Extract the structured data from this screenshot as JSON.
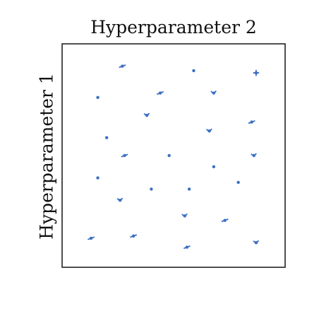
{
  "chart_data": {
    "type": "scatter",
    "title": "",
    "xlabel": "Hyperparameter 2",
    "ylabel": "Hyperparameter 1",
    "xlim": [
      0,
      1
    ],
    "ylim": [
      0,
      1
    ],
    "grid": false,
    "axis_ticks": false,
    "point_color": "#3b6fc4",
    "series": [
      {
        "points": [
          {
            "x": 0.27,
            "y": 0.9,
            "shape": "dash"
          },
          {
            "x": 0.59,
            "y": 0.88,
            "shape": "dot"
          },
          {
            "x": 0.87,
            "y": 0.87,
            "shape": "plus"
          },
          {
            "x": 0.16,
            "y": 0.76,
            "shape": "dot"
          },
          {
            "x": 0.44,
            "y": 0.78,
            "shape": "dash"
          },
          {
            "x": 0.68,
            "y": 0.78,
            "shape": "hook"
          },
          {
            "x": 0.38,
            "y": 0.68,
            "shape": "hook"
          },
          {
            "x": 0.85,
            "y": 0.65,
            "shape": "dash"
          },
          {
            "x": 0.66,
            "y": 0.61,
            "shape": "hook"
          },
          {
            "x": 0.2,
            "y": 0.58,
            "shape": "dot"
          },
          {
            "x": 0.28,
            "y": 0.5,
            "shape": "dash"
          },
          {
            "x": 0.48,
            "y": 0.5,
            "shape": "dot"
          },
          {
            "x": 0.86,
            "y": 0.5,
            "shape": "hook"
          },
          {
            "x": 0.68,
            "y": 0.45,
            "shape": "dot"
          },
          {
            "x": 0.16,
            "y": 0.4,
            "shape": "dot"
          },
          {
            "x": 0.79,
            "y": 0.38,
            "shape": "dot"
          },
          {
            "x": 0.4,
            "y": 0.35,
            "shape": "dot"
          },
          {
            "x": 0.57,
            "y": 0.35,
            "shape": "dot"
          },
          {
            "x": 0.26,
            "y": 0.3,
            "shape": "hook"
          },
          {
            "x": 0.55,
            "y": 0.23,
            "shape": "hook"
          },
          {
            "x": 0.73,
            "y": 0.21,
            "shape": "dash"
          },
          {
            "x": 0.32,
            "y": 0.14,
            "shape": "dash"
          },
          {
            "x": 0.13,
            "y": 0.13,
            "shape": "dash"
          },
          {
            "x": 0.56,
            "y": 0.09,
            "shape": "dash"
          },
          {
            "x": 0.87,
            "y": 0.11,
            "shape": "hook"
          }
        ]
      }
    ]
  }
}
